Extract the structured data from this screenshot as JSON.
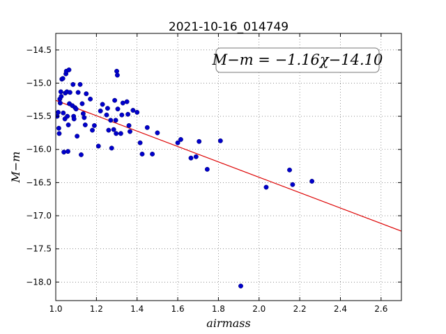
{
  "chart_data": {
    "type": "scatter",
    "title": "2021-10-16_014749",
    "xlabel": "airmass",
    "ylabel": "M−m",
    "xlim": [
      1.0,
      2.7
    ],
    "ylim": [
      -18.28,
      -14.25
    ],
    "x_ticks": [
      1.0,
      1.2,
      1.4,
      1.6,
      1.8,
      2.0,
      2.2,
      2.4,
      2.6
    ],
    "x_tick_labels": [
      "1.0",
      "1.2",
      "1.4",
      "1.6",
      "1.8",
      "2.0",
      "2.2",
      "2.4",
      "2.6"
    ],
    "y_ticks": [
      -14.5,
      -15.0,
      -15.5,
      -16.0,
      -16.5,
      -17.0,
      -17.5,
      -18.0
    ],
    "y_tick_labels": [
      "−14.5",
      "−15.0",
      "−15.5",
      "−16.0",
      "−16.5",
      "−17.0",
      "−17.5",
      "−18.0"
    ],
    "grid": true,
    "annotation": "M−m = −1.16χ−14.10",
    "fit": {
      "slope": -1.16,
      "intercept": -14.1,
      "color": "#dd0000"
    },
    "point_color": "#0000cc",
    "points": [
      [
        1.007,
        -15.5
      ],
      [
        1.012,
        -15.44
      ],
      [
        1.015,
        -15.68
      ],
      [
        1.017,
        -15.76
      ],
      [
        1.02,
        -15.24
      ],
      [
        1.022,
        -15.3
      ],
      [
        1.025,
        -15.13
      ],
      [
        1.027,
        -15.2
      ],
      [
        1.03,
        -14.94
      ],
      [
        1.035,
        -14.93
      ],
      [
        1.037,
        -15.45
      ],
      [
        1.04,
        -16.04
      ],
      [
        1.045,
        -15.54
      ],
      [
        1.047,
        -15.15
      ],
      [
        1.05,
        -14.86
      ],
      [
        1.052,
        -14.82
      ],
      [
        1.055,
        -15.13
      ],
      [
        1.057,
        -15.5
      ],
      [
        1.06,
        -16.03
      ],
      [
        1.062,
        -15.63
      ],
      [
        1.065,
        -14.8
      ],
      [
        1.067,
        -15.31
      ],
      [
        1.07,
        -15.14
      ],
      [
        1.082,
        -15.34
      ],
      [
        1.085,
        -15.02
      ],
      [
        1.088,
        -15.5
      ],
      [
        1.09,
        -15.54
      ],
      [
        1.095,
        -15.37
      ],
      [
        1.1,
        -15.39
      ],
      [
        1.105,
        -15.8
      ],
      [
        1.11,
        -15.14
      ],
      [
        1.12,
        -15.02
      ],
      [
        1.125,
        -16.08
      ],
      [
        1.13,
        -15.31
      ],
      [
        1.135,
        -15.46
      ],
      [
        1.14,
        -15.52
      ],
      [
        1.145,
        -15.63
      ],
      [
        1.15,
        -15.16
      ],
      [
        1.17,
        -15.24
      ],
      [
        1.18,
        -15.71
      ],
      [
        1.19,
        -15.64
      ],
      [
        1.21,
        -15.95
      ],
      [
        1.22,
        -15.42
      ],
      [
        1.23,
        -15.32
      ],
      [
        1.25,
        -15.48
      ],
      [
        1.255,
        -15.38
      ],
      [
        1.26,
        -15.71
      ],
      [
        1.27,
        -15.56
      ],
      [
        1.275,
        -15.98
      ],
      [
        1.285,
        -15.7
      ],
      [
        1.29,
        -15.26
      ],
      [
        1.295,
        -15.56
      ],
      [
        1.297,
        -15.76
      ],
      [
        1.3,
        -14.82
      ],
      [
        1.303,
        -14.88
      ],
      [
        1.305,
        -15.39
      ],
      [
        1.32,
        -15.76
      ],
      [
        1.325,
        -15.48
      ],
      [
        1.33,
        -15.3
      ],
      [
        1.35,
        -15.28
      ],
      [
        1.355,
        -15.47
      ],
      [
        1.36,
        -15.64
      ],
      [
        1.365,
        -15.73
      ],
      [
        1.38,
        -15.41
      ],
      [
        1.4,
        -15.44
      ],
      [
        1.415,
        -15.9
      ],
      [
        1.425,
        -16.07
      ],
      [
        1.45,
        -15.67
      ],
      [
        1.475,
        -16.07
      ],
      [
        1.5,
        -15.75
      ],
      [
        1.6,
        -15.9
      ],
      [
        1.615,
        -15.85
      ],
      [
        1.665,
        -16.13
      ],
      [
        1.69,
        -16.11
      ],
      [
        1.705,
        -15.88
      ],
      [
        1.745,
        -16.3
      ],
      [
        1.81,
        -15.87
      ],
      [
        1.91,
        -18.06
      ],
      [
        2.035,
        -16.57
      ],
      [
        2.15,
        -16.31
      ],
      [
        2.165,
        -16.53
      ],
      [
        2.26,
        -16.48
      ]
    ]
  }
}
